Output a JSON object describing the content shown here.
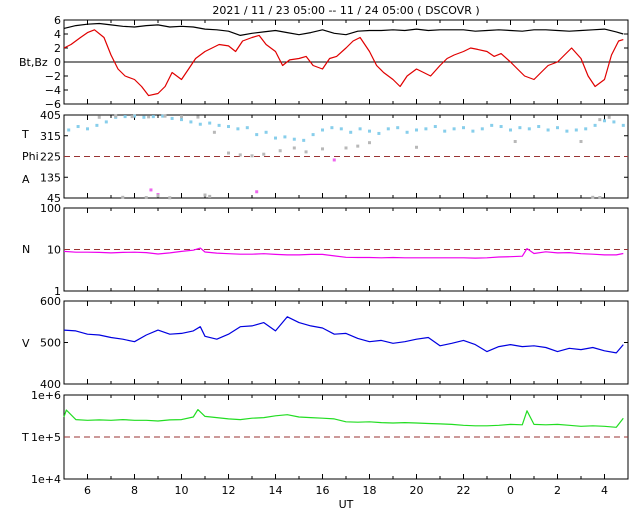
{
  "chart_data": {
    "type": "line",
    "title": "2021 / 11 / 23   05:00 -- 11 / 24   05:00 ( DSCOVR )",
    "xlabel": "UT",
    "x_range": [
      5,
      29
    ],
    "x_ticks": [
      "6",
      "8",
      "10",
      "12",
      "14",
      "16",
      "18",
      "20",
      "22",
      "0",
      "2",
      "4"
    ],
    "panels": [
      {
        "id": "mag",
        "ylabels": [
          "Bt,Bz"
        ],
        "ylim": [
          -6,
          6
        ],
        "yticks": [
          "6",
          "4",
          "2",
          "0",
          "−2",
          "−4",
          "−6"
        ],
        "series": [
          {
            "color": "#000000",
            "x": [
              5.0,
              5.5,
              6.0,
              6.5,
              7.0,
              7.5,
              8.0,
              8.5,
              9.0,
              9.5,
              10.0,
              10.5,
              11.0,
              11.5,
              12.0,
              12.5,
              13.0,
              13.5,
              14.0,
              14.5,
              15.0,
              15.5,
              16.0,
              16.5,
              17.0,
              17.5,
              18.0,
              18.5,
              19.0,
              19.5,
              20.0,
              20.5,
              21.0,
              21.5,
              22.0,
              22.5,
              23.0,
              23.5,
              24.0,
              24.5,
              25.0,
              25.5,
              26.0,
              26.5,
              27.0,
              27.5,
              28.0,
              28.5,
              28.8
            ],
            "y": [
              4.8,
              5.2,
              5.4,
              5.5,
              5.3,
              5.1,
              5.0,
              5.2,
              5.3,
              5.0,
              5.1,
              5.0,
              4.7,
              4.6,
              4.4,
              3.8,
              4.1,
              4.3,
              4.5,
              4.2,
              3.9,
              4.2,
              4.6,
              4.1,
              3.9,
              4.4,
              4.5,
              4.5,
              4.6,
              4.5,
              4.7,
              4.5,
              4.6,
              4.6,
              4.6,
              4.4,
              4.5,
              4.6,
              4.5,
              4.4,
              4.6,
              4.6,
              4.5,
              4.4,
              4.5,
              4.6,
              4.7,
              4.3,
              4.0
            ]
          },
          {
            "color": "#e00000",
            "x": [
              5.0,
              5.3,
              5.7,
              6.0,
              6.3,
              6.7,
              7.0,
              7.3,
              7.6,
              8.0,
              8.3,
              8.6,
              9.0,
              9.3,
              9.6,
              10.0,
              10.3,
              10.6,
              11.0,
              11.3,
              11.6,
              12.0,
              12.3,
              12.6,
              13.0,
              13.3,
              13.6,
              14.0,
              14.3,
              14.6,
              15.0,
              15.3,
              15.6,
              16.0,
              16.3,
              16.6,
              17.0,
              17.3,
              17.6,
              18.0,
              18.3,
              18.6,
              19.0,
              19.3,
              19.6,
              20.0,
              20.3,
              20.6,
              21.0,
              21.3,
              21.6,
              22.0,
              22.3,
              22.6,
              23.0,
              23.3,
              23.6,
              24.0,
              24.3,
              24.6,
              25.0,
              25.3,
              25.6,
              26.0,
              26.3,
              26.6,
              27.0,
              27.3,
              27.6,
              28.0,
              28.3,
              28.6,
              28.8
            ],
            "y": [
              2.0,
              2.5,
              3.5,
              4.2,
              4.6,
              3.5,
              1.0,
              -1.0,
              -2.0,
              -2.5,
              -3.5,
              -4.8,
              -4.5,
              -3.5,
              -1.5,
              -2.5,
              -1.0,
              0.5,
              1.5,
              2.0,
              2.5,
              2.3,
              1.5,
              3.0,
              3.5,
              3.8,
              2.5,
              1.5,
              -0.5,
              0.3,
              0.5,
              0.8,
              -0.5,
              -1.0,
              0.5,
              0.8,
              2.0,
              3.0,
              3.5,
              1.5,
              -0.5,
              -1.5,
              -2.5,
              -3.5,
              -2.0,
              -1.0,
              -1.5,
              -2.0,
              -0.5,
              0.5,
              1.0,
              1.5,
              2.0,
              1.8,
              1.5,
              0.8,
              1.2,
              0.0,
              -1.0,
              -2.0,
              -2.5,
              -1.5,
              -0.5,
              0.0,
              1.0,
              2.0,
              0.5,
              -2.0,
              -3.5,
              -2.5,
              1.0,
              3.0,
              3.2
            ]
          }
        ]
      },
      {
        "id": "plasma",
        "ylabels": [
          "T",
          "Phi",
          "A"
        ],
        "ylim": [
          45,
          405
        ],
        "yticks": [
          "405",
          "315",
          "225",
          "135",
          "45"
        ],
        "ref_line": 225,
        "series": [
          {
            "name": "T",
            "color": "#87ceeb",
            "x": [
              5.2,
              5.6,
              6.0,
              6.4,
              6.8,
              7.2,
              7.6,
              8.0,
              8.4,
              8.8,
              9.2,
              9.6,
              10.0,
              10.4,
              10.8,
              11.2,
              11.6,
              12.0,
              12.4,
              12.8,
              13.2,
              13.6,
              14.0,
              14.4,
              14.8,
              15.2,
              15.6,
              16.0,
              16.4,
              16.8,
              17.2,
              17.6,
              18.0,
              18.4,
              18.8,
              19.2,
              19.6,
              20.0,
              20.4,
              20.8,
              21.2,
              21.6,
              22.0,
              22.4,
              22.8,
              23.2,
              23.6,
              24.0,
              24.4,
              24.8,
              25.2,
              25.6,
              26.0,
              26.4,
              26.8,
              27.2,
              27.6,
              28.0,
              28.4,
              28.8
            ],
            "y": [
              340,
              355,
              345,
              360,
              375,
              395,
              398,
              400,
              395,
              398,
              400,
              390,
              385,
              375,
              365,
              370,
              360,
              355,
              345,
              350,
              320,
              330,
              305,
              310,
              300,
              295,
              320,
              340,
              350,
              345,
              330,
              345,
              335,
              325,
              345,
              350,
              330,
              340,
              345,
              355,
              335,
              345,
              350,
              335,
              345,
              360,
              355,
              340,
              350,
              345,
              355,
              340,
              350,
              335,
              340,
              345,
              360,
              380,
              375,
              360
            ]
          },
          {
            "name": "Phi",
            "color": "#b8b8b8",
            "x": [
              6.5,
              7.2,
              7.9,
              8.6,
              9.3,
              10.0,
              10.7,
              11.4,
              12.0,
              12.5,
              13.0,
              13.5,
              14.2,
              14.8,
              15.3,
              16.0,
              17.0,
              17.5,
              18.0,
              20.0,
              24.2,
              27.0,
              27.8,
              28.2
            ],
            "y": [
              395,
              400,
              398,
              397,
              400,
              398,
              396,
              330,
              240,
              232,
              228,
              235,
              250,
              262,
              245,
              258,
              262,
              270,
              285,
              265,
              290,
              290,
              385,
              395
            ]
          },
          {
            "name": "A",
            "color": "#ee66ee",
            "x": [
              8.7,
              13.2,
              16.5,
              9.0
            ],
            "y": [
              80,
              72,
              210,
              60
            ]
          },
          {
            "name": "A-low",
            "color": "#b8b8b8",
            "x": [
              7.5,
              8.5,
              9.0,
              9.5,
              11.0,
              11.2,
              27.5,
              27.8
            ],
            "y": [
              48,
              47,
              55,
              46,
              58,
              52,
              48,
              47
            ]
          }
        ]
      },
      {
        "id": "density",
        "ylabels": [
          "N"
        ],
        "ylim": [
          1,
          100
        ],
        "log": true,
        "yticks": [
          "100",
          "10",
          "1"
        ],
        "ref_line": 10,
        "series": [
          {
            "color": "#ee00ee",
            "x": [
              5.0,
              5.5,
              6.0,
              6.5,
              7.0,
              7.5,
              8.0,
              8.5,
              9.0,
              9.5,
              10.0,
              10.5,
              10.8,
              11.0,
              11.5,
              12.0,
              12.5,
              13.0,
              13.5,
              14.0,
              14.5,
              15.0,
              15.5,
              16.0,
              16.5,
              17.0,
              17.5,
              18.0,
              18.5,
              19.0,
              19.5,
              20.0,
              20.5,
              21.0,
              21.5,
              22.0,
              22.5,
              23.0,
              23.5,
              24.0,
              24.5,
              24.7,
              25.0,
              25.5,
              26.0,
              26.5,
              27.0,
              27.5,
              28.0,
              28.5,
              28.8
            ],
            "y": [
              9.0,
              8.6,
              8.6,
              8.5,
              8.3,
              8.5,
              8.6,
              8.4,
              7.8,
              8.3,
              9.0,
              9.6,
              10.8,
              8.7,
              8.2,
              7.9,
              7.7,
              7.7,
              7.9,
              7.6,
              7.4,
              7.4,
              7.6,
              7.6,
              7.0,
              6.5,
              6.4,
              6.4,
              6.3,
              6.4,
              6.3,
              6.3,
              6.3,
              6.3,
              6.3,
              6.3,
              6.2,
              6.3,
              6.6,
              6.7,
              6.9,
              10.5,
              8.0,
              8.8,
              8.3,
              8.4,
              7.9,
              7.7,
              7.4,
              7.4,
              8.0
            ]
          }
        ]
      },
      {
        "id": "speed",
        "ylabels": [
          "V"
        ],
        "ylim": [
          400,
          600
        ],
        "yticks": [
          "600",
          "500",
          "400"
        ],
        "series": [
          {
            "color": "#0000e0",
            "x": [
              5.0,
              5.5,
              6.0,
              6.5,
              7.0,
              7.5,
              8.0,
              8.5,
              9.0,
              9.5,
              10.0,
              10.5,
              10.8,
              11.0,
              11.5,
              12.0,
              12.5,
              13.0,
              13.5,
              14.0,
              14.5,
              15.0,
              15.5,
              16.0,
              16.5,
              17.0,
              17.5,
              18.0,
              18.5,
              19.0,
              19.5,
              20.0,
              20.5,
              21.0,
              21.5,
              22.0,
              22.5,
              23.0,
              23.5,
              24.0,
              24.5,
              25.0,
              25.5,
              26.0,
              26.5,
              27.0,
              27.5,
              28.0,
              28.5,
              28.8
            ],
            "y": [
              530,
              528,
              520,
              518,
              512,
              508,
              502,
              518,
              530,
              520,
              522,
              528,
              538,
              515,
              508,
              520,
              538,
              540,
              548,
              528,
              562,
              548,
              540,
              535,
              520,
              522,
              510,
              502,
              505,
              498,
              502,
              508,
              512,
              492,
              498,
              505,
              495,
              478,
              490,
              495,
              490,
              492,
              488,
              478,
              486,
              483,
              488,
              480,
              475,
              495
            ]
          }
        ]
      },
      {
        "id": "temperature",
        "ylabels": [
          "T"
        ],
        "ylim": [
          10000,
          1000000
        ],
        "log": true,
        "yticks": [
          "1e+6",
          "1e+5",
          "1e+4"
        ],
        "ref_line": 100000,
        "series": [
          {
            "color": "#22dd22",
            "x": [
              5.0,
              5.1,
              5.5,
              6.0,
              6.5,
              7.0,
              7.5,
              8.0,
              8.5,
              9.0,
              9.5,
              10.0,
              10.5,
              10.7,
              11.0,
              11.5,
              12.0,
              12.5,
              13.0,
              13.5,
              14.0,
              14.5,
              15.0,
              15.5,
              16.0,
              16.5,
              17.0,
              17.5,
              18.0,
              18.5,
              19.0,
              19.5,
              20.0,
              20.5,
              21.0,
              21.5,
              22.0,
              22.5,
              23.0,
              23.5,
              24.0,
              24.5,
              24.7,
              25.0,
              25.5,
              26.0,
              26.5,
              27.0,
              27.5,
              28.0,
              28.5,
              28.8
            ],
            "y": [
              300000,
              440000,
              260000,
              250000,
              255000,
              250000,
              260000,
              250000,
              250000,
              240000,
              255000,
              260000,
              300000,
              450000,
              310000,
              290000,
              270000,
              260000,
              280000,
              290000,
              320000,
              340000,
              300000,
              290000,
              280000,
              270000,
              230000,
              225000,
              230000,
              220000,
              215000,
              220000,
              215000,
              210000,
              205000,
              200000,
              190000,
              185000,
              185000,
              190000,
              200000,
              195000,
              420000,
              200000,
              195000,
              200000,
              190000,
              180000,
              185000,
              180000,
              170000,
              280000
            ]
          }
        ]
      }
    ]
  }
}
